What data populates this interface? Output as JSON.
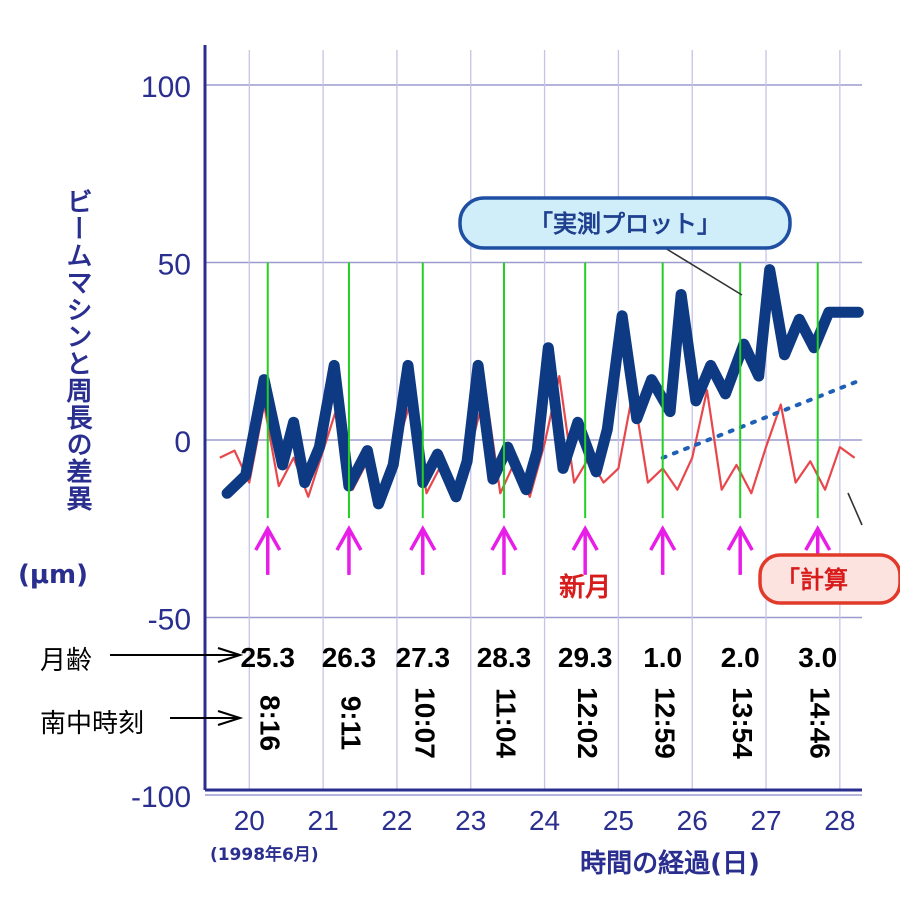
{
  "chart_data": {
    "type": "line",
    "ylabel": "ビームマシンと周長の差異",
    "yunit": "(μm)",
    "xlabel": "時間の経過(日)",
    "x_sublabel": "(1998年6月)",
    "xlim": [
      19.4,
      28.3
    ],
    "ylim": [
      -100,
      110
    ],
    "yticks": [
      100,
      50,
      0,
      -50,
      -100
    ],
    "xticks": [
      20,
      21,
      22,
      23,
      24,
      25,
      26,
      27,
      28
    ],
    "grid": true,
    "series": [
      {
        "name": "実測プロット",
        "color": "#0d3a82",
        "x": [
          19.7,
          19.95,
          20.2,
          20.45,
          20.6,
          20.75,
          20.95,
          21.15,
          21.35,
          21.6,
          21.75,
          21.95,
          22.15,
          22.35,
          22.55,
          22.8,
          22.95,
          23.1,
          23.3,
          23.5,
          23.75,
          23.9,
          24.05,
          24.25,
          24.45,
          24.7,
          24.85,
          25.05,
          25.25,
          25.45,
          25.7,
          25.85,
          26.05,
          26.25,
          26.45,
          26.7,
          26.9,
          27.05,
          27.25,
          27.45,
          27.65,
          27.85,
          28.05,
          28.25
        ],
        "values": [
          -15,
          -10,
          17,
          -7,
          5,
          -12,
          -2,
          21,
          -13,
          -3,
          -18,
          -7,
          21,
          -12,
          -4,
          -16,
          -6,
          21,
          -11,
          -2,
          -14,
          -3,
          26,
          -8,
          5,
          -9,
          3,
          35,
          6,
          17,
          8,
          41,
          11,
          21,
          13,
          27,
          18,
          48,
          24,
          34,
          26,
          36,
          36,
          36
        ]
      },
      {
        "name": "計算",
        "color": "#e8474c",
        "x": [
          19.6,
          19.8,
          20.0,
          20.2,
          20.4,
          20.6,
          20.8,
          21.0,
          21.2,
          21.4,
          21.6,
          21.8,
          22.0,
          22.2,
          22.4,
          22.6,
          22.8,
          23.0,
          23.2,
          23.4,
          23.6,
          23.8,
          24.0,
          24.2,
          24.4,
          24.6,
          24.8,
          25.0,
          25.2,
          25.4,
          25.6,
          25.8,
          26.0,
          26.2,
          26.4,
          26.6,
          26.8,
          27.0,
          27.2,
          27.4,
          27.6,
          27.8,
          28.0,
          28.2
        ],
        "values": [
          -5,
          -3,
          -12,
          10,
          -13,
          -5,
          -16,
          -3,
          10,
          -14,
          -6,
          -15,
          -2,
          12,
          -15,
          -7,
          -14,
          -2,
          14,
          -15,
          -6,
          -16,
          -1,
          18,
          -12,
          -5,
          -12,
          -8,
          14,
          -12,
          -8,
          -14,
          -5,
          14,
          -14,
          -7,
          -15,
          -2,
          10,
          -12,
          -6,
          -14,
          -2,
          -5
        ]
      },
      {
        "name": "trend",
        "color": "#1f5fb5",
        "style": "dotted",
        "x": [
          25.6,
          28.3
        ],
        "values": [
          -5,
          17
        ]
      }
    ],
    "transit_marks": [
      20.25,
      21.35,
      22.35,
      23.45,
      24.55,
      25.6,
      26.65,
      27.7
    ],
    "moon_age": [
      "25.3",
      "26.3",
      "27.3",
      "28.3",
      "29.3",
      "1.0",
      "2.0",
      "3.0"
    ],
    "transit_time": [
      "8:16",
      "9:11",
      "10:07",
      "11:04",
      "12:02",
      "12:59",
      "13:54",
      "14:46"
    ],
    "annotations": {
      "measured": "「実測プロット」",
      "calculated": "「計算",
      "new_moon": "新月"
    },
    "row_labels": {
      "moon_age": "月齢",
      "transit": "南中時刻"
    }
  }
}
